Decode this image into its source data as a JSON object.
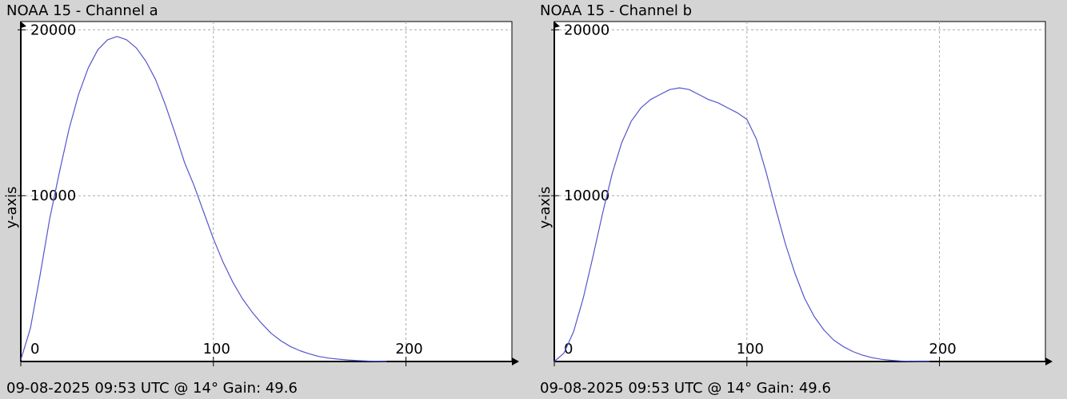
{
  "charts": [
    {
      "title": "NOAA 15 - Channel a",
      "footer": "09-08-2025 09:53 UTC @ 14° Gain: 49.6"
    },
    {
      "title": "NOAA 15 - Channel b",
      "footer": "09-08-2025 09:53 UTC @ 14° Gain: 49.6"
    }
  ],
  "colors": {
    "background": "#d4d4d4",
    "plot_area": "#ffffff",
    "series_line": "#5555cc",
    "grid": "#aaaaaa",
    "axis": "#000000"
  },
  "chart_data": [
    {
      "type": "line",
      "title": "NOAA 15 - Channel a",
      "xlabel": "",
      "ylabel": "y-axis",
      "xlim": [
        0,
        255
      ],
      "ylim": [
        0,
        20500
      ],
      "x_ticks": [
        0,
        100,
        200
      ],
      "y_ticks": [
        10000,
        20000
      ],
      "x_tick_labels": [
        "0",
        "100",
        "200"
      ],
      "y_tick_labels": [
        "10000",
        "20000"
      ],
      "grid": true,
      "series": [
        {
          "x": [
            0,
            5,
            10,
            15,
            20,
            25,
            30,
            35,
            40,
            45,
            50,
            55,
            60,
            65,
            70,
            75,
            80,
            85,
            90,
            95,
            100,
            105,
            110,
            115,
            120,
            125,
            130,
            135,
            140,
            145,
            150,
            155,
            160,
            165,
            170,
            175,
            180,
            185,
            190
          ],
          "y": [
            100,
            2000,
            5200,
            8600,
            11400,
            14000,
            16100,
            17700,
            18800,
            19400,
            19600,
            19400,
            18900,
            18100,
            17000,
            15500,
            13800,
            12000,
            10600,
            9000,
            7400,
            6000,
            4800,
            3800,
            3000,
            2300,
            1700,
            1250,
            900,
            650,
            450,
            300,
            200,
            140,
            90,
            60,
            30,
            15,
            0
          ]
        }
      ]
    },
    {
      "type": "line",
      "title": "NOAA 15 - Channel b",
      "xlabel": "",
      "ylabel": "y-axis",
      "xlim": [
        0,
        255
      ],
      "ylim": [
        0,
        20500
      ],
      "x_ticks": [
        0,
        100,
        200
      ],
      "y_ticks": [
        10000,
        20000
      ],
      "x_tick_labels": [
        "0",
        "100",
        "200"
      ],
      "y_tick_labels": [
        "10000",
        "20000"
      ],
      "grid": true,
      "series": [
        {
          "x": [
            0,
            5,
            10,
            15,
            20,
            25,
            30,
            35,
            40,
            45,
            50,
            55,
            60,
            65,
            70,
            75,
            80,
            85,
            90,
            95,
            100,
            105,
            110,
            115,
            120,
            125,
            130,
            135,
            140,
            145,
            150,
            155,
            160,
            165,
            170,
            175,
            180,
            185,
            190,
            195
          ],
          "y": [
            0,
            500,
            1800,
            3800,
            6300,
            8900,
            11300,
            13200,
            14500,
            15300,
            15800,
            16100,
            16400,
            16500,
            16400,
            16100,
            15800,
            15600,
            15300,
            15000,
            14600,
            13400,
            11400,
            9200,
            7100,
            5300,
            3800,
            2700,
            1900,
            1300,
            900,
            600,
            380,
            230,
            130,
            70,
            30,
            10,
            0,
            0
          ]
        }
      ]
    }
  ]
}
